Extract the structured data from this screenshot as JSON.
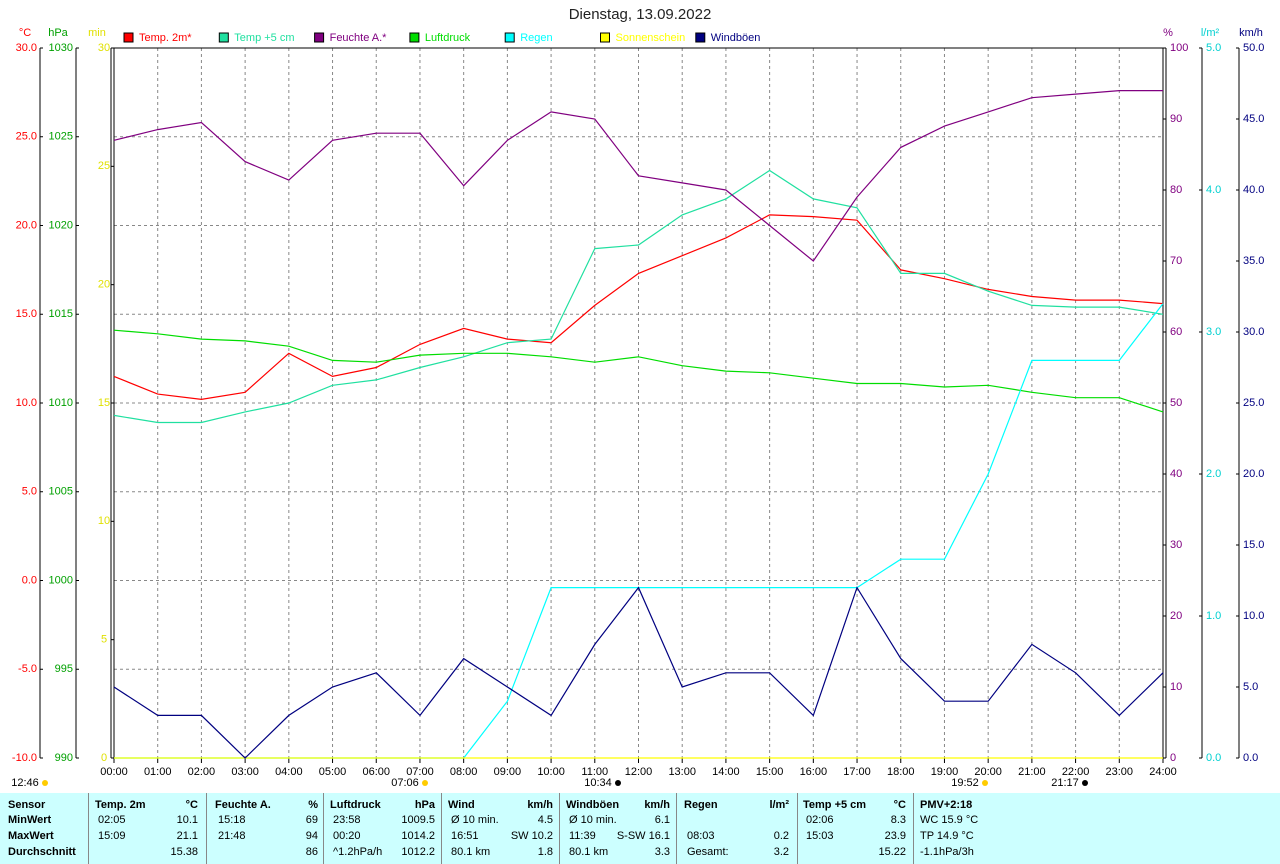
{
  "chart_data": {
    "type": "line",
    "title": "Dienstag, 13.09.2022",
    "grid": true,
    "xlim": [
      0,
      24
    ],
    "xticks": [
      {
        "value": 0,
        "label": "00:00"
      },
      {
        "value": 1,
        "label": "01:00"
      },
      {
        "value": 2,
        "label": "02:00"
      },
      {
        "value": 3,
        "label": "03:00"
      },
      {
        "value": 4,
        "label": "04:00"
      },
      {
        "value": 5,
        "label": "05:00"
      },
      {
        "value": 6,
        "label": "06:00"
      },
      {
        "value": 7,
        "label": "07:00"
      },
      {
        "value": 8,
        "label": "08:00"
      },
      {
        "value": 9,
        "label": "09:00"
      },
      {
        "value": 10,
        "label": "10:00"
      },
      {
        "value": 11,
        "label": "11:00"
      },
      {
        "value": 12,
        "label": "12:00"
      },
      {
        "value": 13,
        "label": "13:00"
      },
      {
        "value": 14,
        "label": "14:00"
      },
      {
        "value": 15,
        "label": "15:00"
      },
      {
        "value": 16,
        "label": "16:00"
      },
      {
        "value": 17,
        "label": "17:00"
      },
      {
        "value": 18,
        "label": "18:00"
      },
      {
        "value": 19,
        "label": "19:00"
      },
      {
        "value": 20,
        "label": "20:00"
      },
      {
        "value": 21,
        "label": "21:00"
      },
      {
        "value": 22,
        "label": "22:00"
      },
      {
        "value": 23,
        "label": "23:00"
      },
      {
        "value": 24,
        "label": "24:00"
      }
    ],
    "axes": [
      {
        "unit": "°C",
        "color": "#ff0000",
        "lim": [
          -10,
          30
        ],
        "ticks": [
          {
            "value": 30,
            "label": "30.0"
          },
          {
            "value": 25,
            "label": "25.0"
          },
          {
            "value": 20,
            "label": "20.0"
          },
          {
            "value": 15,
            "label": "15.0"
          },
          {
            "value": 10,
            "label": "10.0"
          },
          {
            "value": 5,
            "label": "5.0"
          },
          {
            "value": 0,
            "label": "0.0"
          },
          {
            "value": -5,
            "label": "-5.0"
          },
          {
            "value": -10,
            "label": "-10.0"
          }
        ]
      },
      {
        "unit": "hPa",
        "color": "#00a000",
        "lim": [
          990,
          1030
        ],
        "ticks": [
          1030,
          1025,
          1020,
          1015,
          1010,
          1005,
          1000,
          995,
          990
        ]
      },
      {
        "unit": "min",
        "color": "#e0e000",
        "lim": [
          0,
          30
        ],
        "ticks": [
          30,
          25,
          20,
          15,
          10,
          5,
          0
        ]
      },
      {
        "unit": "%",
        "color": "#800080",
        "lim": [
          0,
          100
        ],
        "ticks": [
          100,
          90,
          80,
          70,
          60,
          50,
          40,
          30,
          20,
          10,
          0
        ]
      },
      {
        "unit": "l/m²",
        "color": "#00d0d0",
        "lim": [
          0,
          5
        ],
        "ticks": [
          {
            "value": 5,
            "label": "5.0"
          },
          {
            "value": 4,
            "label": "4.0"
          },
          {
            "value": 3,
            "label": "3.0"
          },
          {
            "value": 2,
            "label": "2.0"
          },
          {
            "value": 1,
            "label": "1.0"
          },
          {
            "value": 0,
            "label": "0.0"
          }
        ]
      },
      {
        "unit": "km/h",
        "color": "#000080",
        "lim": [
          0,
          50
        ],
        "ticks": [
          {
            "value": 50,
            "label": "50.0"
          },
          {
            "value": 45,
            "label": "45.0"
          },
          {
            "value": 40,
            "label": "40.0"
          },
          {
            "value": 35,
            "label": "35.0"
          },
          {
            "value": 30,
            "label": "30.0"
          },
          {
            "value": 25,
            "label": "25.0"
          },
          {
            "value": 20,
            "label": "20.0"
          },
          {
            "value": 15,
            "label": "15.0"
          },
          {
            "value": 10,
            "label": "10.0"
          },
          {
            "value": 5,
            "label": "5.0"
          },
          {
            "value": 0,
            "label": "0.0"
          }
        ]
      }
    ],
    "x": [
      0,
      1,
      2,
      3,
      4,
      5,
      6,
      7,
      8,
      9,
      10,
      11,
      12,
      13,
      14,
      15,
      16,
      17,
      18,
      19,
      20,
      21,
      22,
      23,
      24
    ],
    "series": [
      {
        "name": "Temp. 2m*",
        "color": "#ff0000",
        "axis": 0,
        "values": [
          11.5,
          10.5,
          10.2,
          10.6,
          12.8,
          11.5,
          12.0,
          13.3,
          14.2,
          13.6,
          13.4,
          15.5,
          17.3,
          18.3,
          19.3,
          20.6,
          20.5,
          20.3,
          17.5,
          17.0,
          16.4,
          16.0,
          15.8,
          15.8,
          15.6
        ]
      },
      {
        "name": "Temp +5 cm",
        "color": "#20e0a0",
        "axis": 0,
        "values": [
          9.3,
          8.9,
          8.9,
          9.5,
          10.0,
          11.0,
          11.3,
          12.0,
          12.6,
          13.4,
          13.6,
          18.7,
          18.9,
          20.6,
          21.5,
          23.1,
          21.5,
          21.0,
          17.3,
          17.3,
          16.3,
          15.5,
          15.4,
          15.4,
          15.0
        ]
      },
      {
        "name": "Feuchte A.*",
        "color": "#800080",
        "axis": 3,
        "values": [
          87,
          88.5,
          89.5,
          84,
          81.4,
          87,
          88,
          88,
          80.6,
          87,
          91,
          90,
          82,
          81,
          80,
          75,
          70,
          79,
          86,
          89,
          91,
          93,
          93.5,
          94,
          94
        ]
      },
      {
        "name": "Luftdruck",
        "color": "#00dd00",
        "axis": 1,
        "values": [
          1014.1,
          1013.9,
          1013.6,
          1013.5,
          1013.2,
          1012.4,
          1012.3,
          1012.7,
          1012.8,
          1012.8,
          1012.6,
          1012.3,
          1012.6,
          1012.1,
          1011.8,
          1011.7,
          1011.4,
          1011.1,
          1011.1,
          1010.9,
          1011.0,
          1010.6,
          1010.3,
          1010.3,
          1009.5
        ]
      },
      {
        "name": "Regen",
        "color": "#00ffff",
        "axis": 4,
        "values": [
          0,
          0,
          0,
          0,
          0,
          0,
          0,
          0,
          0,
          0.4,
          1.2,
          1.2,
          1.2,
          1.2,
          1.2,
          1.2,
          1.2,
          1.2,
          1.4,
          1.4,
          2.0,
          2.8,
          2.8,
          2.8,
          3.2
        ]
      },
      {
        "name": "Sonnenschein",
        "color": "#ffff00",
        "axis": 2,
        "values": [
          0,
          0,
          0,
          0,
          0,
          0,
          0,
          0,
          0,
          0,
          0,
          0,
          0,
          0,
          0,
          0,
          0,
          0,
          0,
          0,
          0,
          0,
          0,
          0,
          0
        ]
      },
      {
        "name": "Windböen",
        "color": "#000080",
        "axis": 5,
        "values": [
          5,
          3,
          3,
          0,
          3,
          5,
          6,
          3,
          7,
          5,
          3,
          8,
          12,
          5,
          6,
          6,
          3,
          12,
          7,
          4,
          4,
          8,
          6,
          3,
          6
        ]
      }
    ],
    "annotations": [
      "12:46",
      "07:06",
      "10:34",
      "19:52",
      "21:17"
    ]
  },
  "table": {
    "sensor": "Sensor",
    "row_labels": [
      "MinWert",
      "MaxWert",
      "Durchschnitt"
    ],
    "groups": [
      {
        "title": "Temp. 2m",
        "unit": "°C",
        "rows": [
          [
            "02:05",
            "10.1"
          ],
          [
            "15:09",
            "21.1"
          ],
          [
            "15.38"
          ]
        ]
      },
      {
        "title": "Feuchte A.",
        "unit": "%",
        "rows": [
          [
            "15:18",
            "69"
          ],
          [
            "21:48",
            "94"
          ],
          [
            "86"
          ]
        ]
      },
      {
        "title": "Luftdruck",
        "unit": "hPa",
        "rows": [
          [
            "23:58",
            "1009.5"
          ],
          [
            "00:20",
            "1014.2"
          ],
          [
            "^1.2hPa/h",
            "1012.2"
          ]
        ]
      },
      {
        "title": "Wind",
        "unit": "km/h",
        "rows": [
          [
            "Ø 10 min.",
            "4.5"
          ],
          [
            "16:51",
            "SW 10.2"
          ],
          [
            "80.1 km",
            "1.8"
          ]
        ]
      },
      {
        "title": "Windböen",
        "unit": "km/h",
        "rows": [
          [
            "Ø 10 min.",
            "6.1"
          ],
          [
            "11:39",
            "S-SW 16.1"
          ],
          [
            "80.1 km",
            "3.3"
          ]
        ]
      },
      {
        "title": "Regen",
        "unit": "l/m²",
        "rows": [
          [],
          [
            "08:03",
            "0.2"
          ],
          [
            "Gesamt:",
            "3.2"
          ]
        ]
      },
      {
        "title": "Temp +5 cm",
        "unit": "°C",
        "rows": [
          [
            "02:06",
            "8.3"
          ],
          [
            "15:03",
            "23.9"
          ],
          [
            "15.22"
          ]
        ]
      },
      {
        "title": "PMV+2:18",
        "rows": [
          [
            "WC 15.9 °C"
          ],
          [
            "TP 14.9 °C"
          ],
          [
            "-1.1hPa/3h"
          ]
        ]
      }
    ]
  }
}
